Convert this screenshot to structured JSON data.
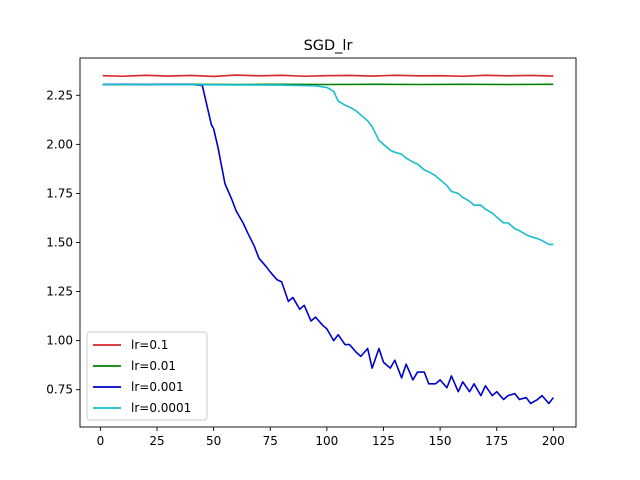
{
  "chart_data": {
    "type": "line",
    "title": "SGD_lr",
    "xlabel": "",
    "ylabel": "",
    "xlim": [
      -9,
      210
    ],
    "ylim": [
      0.56,
      2.44
    ],
    "xticks": [
      0,
      25,
      50,
      75,
      100,
      125,
      150,
      175,
      200
    ],
    "yticks": [
      0.75,
      1.0,
      1.25,
      1.5,
      1.75,
      2.0,
      2.25
    ],
    "ytick_labels": [
      "0.75",
      "1.00",
      "1.25",
      "1.50",
      "1.75",
      "2.00",
      "2.25"
    ],
    "grid": false,
    "legend": "lower-left",
    "series": [
      {
        "name": "lr=0.1",
        "color": "#d62728",
        "x": [
          1,
          10,
          20,
          30,
          40,
          50,
          60,
          70,
          80,
          90,
          100,
          110,
          120,
          130,
          140,
          150,
          160,
          170,
          180,
          190,
          200
        ],
        "y": [
          2.35,
          2.347,
          2.352,
          2.348,
          2.351,
          2.346,
          2.353,
          2.349,
          2.352,
          2.347,
          2.35,
          2.351,
          2.348,
          2.352,
          2.349,
          2.35,
          2.347,
          2.352,
          2.349,
          2.351,
          2.348
        ]
      },
      {
        "name": "lr=0.01",
        "color": "#008000",
        "x": [
          1,
          20,
          40,
          60,
          80,
          100,
          120,
          140,
          160,
          180,
          200
        ],
        "y": [
          2.305,
          2.305,
          2.306,
          2.305,
          2.306,
          2.305,
          2.306,
          2.305,
          2.306,
          2.305,
          2.306
        ]
      },
      {
        "name": "lr=0.001",
        "color": "#0000cd",
        "x": [
          1,
          10,
          20,
          30,
          40,
          45,
          47,
          49,
          50,
          52,
          55,
          58,
          60,
          63,
          65,
          68,
          70,
          73,
          75,
          78,
          80,
          83,
          85,
          88,
          90,
          93,
          95,
          98,
          100,
          103,
          105,
          108,
          110,
          113,
          115,
          118,
          120,
          123,
          125,
          128,
          130,
          133,
          135,
          138,
          140,
          143,
          145,
          148,
          150,
          153,
          155,
          158,
          160,
          163,
          165,
          168,
          170,
          173,
          175,
          178,
          180,
          183,
          185,
          188,
          190,
          193,
          195,
          198,
          200
        ],
        "y": [
          2.305,
          2.306,
          2.305,
          2.306,
          2.305,
          2.3,
          2.2,
          2.1,
          2.08,
          1.98,
          1.8,
          1.72,
          1.66,
          1.6,
          1.55,
          1.48,
          1.42,
          1.38,
          1.35,
          1.31,
          1.3,
          1.2,
          1.22,
          1.16,
          1.18,
          1.1,
          1.12,
          1.08,
          1.06,
          1.0,
          1.03,
          0.98,
          0.98,
          0.94,
          0.92,
          0.96,
          0.86,
          0.96,
          0.89,
          0.86,
          0.9,
          0.81,
          0.88,
          0.8,
          0.84,
          0.84,
          0.78,
          0.78,
          0.8,
          0.76,
          0.82,
          0.74,
          0.79,
          0.74,
          0.78,
          0.72,
          0.77,
          0.72,
          0.74,
          0.7,
          0.72,
          0.73,
          0.7,
          0.71,
          0.68,
          0.7,
          0.72,
          0.68,
          0.71
        ]
      },
      {
        "name": "lr=0.0001",
        "color": "#17becf",
        "x": [
          1,
          20,
          40,
          60,
          80,
          95,
          100,
          103,
          105,
          108,
          110,
          113,
          115,
          118,
          120,
          123,
          125,
          128,
          130,
          133,
          135,
          138,
          140,
          143,
          145,
          148,
          150,
          153,
          155,
          158,
          160,
          163,
          165,
          168,
          170,
          173,
          175,
          178,
          180,
          183,
          185,
          188,
          190,
          193,
          195,
          198,
          200
        ],
        "y": [
          2.305,
          2.305,
          2.304,
          2.303,
          2.302,
          2.298,
          2.29,
          2.27,
          2.22,
          2.2,
          2.19,
          2.17,
          2.15,
          2.12,
          2.09,
          2.02,
          2.0,
          1.97,
          1.96,
          1.95,
          1.93,
          1.91,
          1.9,
          1.87,
          1.86,
          1.84,
          1.82,
          1.79,
          1.76,
          1.75,
          1.73,
          1.71,
          1.69,
          1.69,
          1.67,
          1.65,
          1.63,
          1.6,
          1.6,
          1.57,
          1.56,
          1.54,
          1.53,
          1.52,
          1.51,
          1.49,
          1.49
        ]
      }
    ]
  }
}
